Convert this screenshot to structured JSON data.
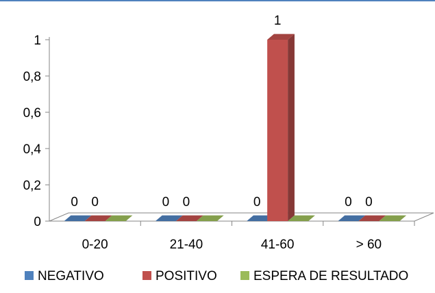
{
  "chart_data": {
    "type": "bar",
    "categories": [
      "0-20",
      "21-40",
      "41-60",
      "> 60"
    ],
    "series": [
      {
        "name": "NEGATIVO",
        "values": [
          0,
          0,
          0,
          0
        ],
        "color": "#4f81bd"
      },
      {
        "name": "POSITIVO",
        "values": [
          0,
          0,
          1,
          0
        ],
        "color": "#c0504d"
      },
      {
        "name": "ESPERA DE RESULTADO",
        "values": [
          0,
          0,
          0,
          0
        ],
        "color": "#9bbb59"
      }
    ],
    "data_labels": [
      [
        "0",
        "0",
        null
      ],
      [
        "0",
        "0",
        null
      ],
      [
        "0",
        "1",
        null
      ],
      [
        "0",
        "0",
        null
      ]
    ],
    "yticks": [
      "0",
      "0,2",
      "0,4",
      "0,6",
      "0,8",
      "1"
    ],
    "ylim": [
      0,
      1
    ],
    "grid": false,
    "legend_position": "bottom",
    "style": "3d-column"
  }
}
